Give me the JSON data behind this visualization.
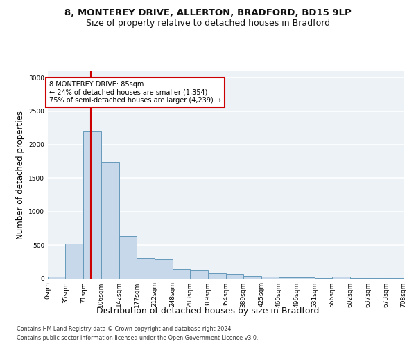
{
  "title_line1": "8, MONTEREY DRIVE, ALLERTON, BRADFORD, BD15 9LP",
  "title_line2": "Size of property relative to detached houses in Bradford",
  "xlabel": "Distribution of detached houses by size in Bradford",
  "ylabel": "Number of detached properties",
  "bar_color": "#c8d8eb",
  "bar_edge_color": "#6699bb",
  "bar_edge_width": 0.7,
  "bin_edges": [
    0,
    35,
    71,
    106,
    142,
    177,
    212,
    248,
    283,
    319,
    354,
    389,
    425,
    460,
    496,
    531,
    566,
    602,
    637,
    673,
    708
  ],
  "bar_heights": [
    30,
    525,
    2200,
    1740,
    640,
    300,
    298,
    140,
    130,
    80,
    68,
    38,
    28,
    20,
    18,
    5,
    22,
    4,
    2,
    2
  ],
  "tick_labels": [
    "0sqm",
    "35sqm",
    "71sqm",
    "106sqm",
    "142sqm",
    "177sqm",
    "212sqm",
    "248sqm",
    "283sqm",
    "319sqm",
    "354sqm",
    "389sqm",
    "425sqm",
    "460sqm",
    "496sqm",
    "531sqm",
    "566sqm",
    "602sqm",
    "637sqm",
    "673sqm",
    "708sqm"
  ],
  "ylim": [
    0,
    3100
  ],
  "yticks": [
    0,
    500,
    1000,
    1500,
    2000,
    2500,
    3000
  ],
  "property_size": 85,
  "red_line_color": "#cc0000",
  "annotation_text": "8 MONTEREY DRIVE: 85sqm\n← 24% of detached houses are smaller (1,354)\n75% of semi-detached houses are larger (4,239) →",
  "annotation_box_color": "#cc0000",
  "annotation_bg": "#ffffff",
  "footer_line1": "Contains HM Land Registry data © Crown copyright and database right 2024.",
  "footer_line2": "Contains public sector information licensed under the Open Government Licence v3.0.",
  "background_color": "#edf2f7",
  "grid_color": "#ffffff",
  "fig_bg": "#ffffff",
  "title_fontsize": 9.5,
  "subtitle_fontsize": 9,
  "tick_fontsize": 6.5,
  "ylabel_fontsize": 8.5,
  "xlabel_fontsize": 9
}
